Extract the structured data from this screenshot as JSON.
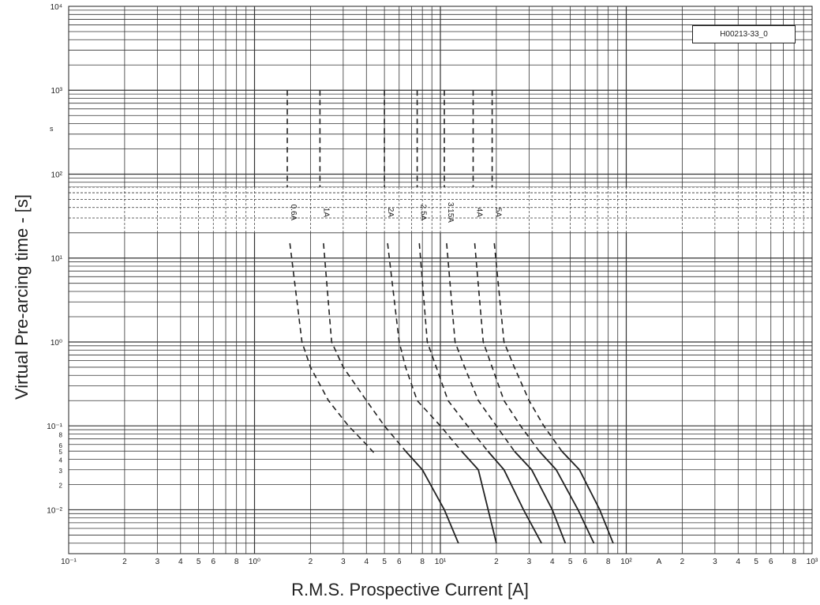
{
  "chart_data": {
    "type": "line",
    "title": "",
    "xlabel": "R.M.S. Prospective Current [A]",
    "ylabel": "Virtual Pre-arcing time - [s]",
    "reference": "H00213-33_0",
    "y_unit": "s",
    "x_scale": "log",
    "y_scale": "log",
    "xlim": [
      0.1,
      1000
    ],
    "ylim": [
      0.003,
      10000
    ],
    "grid": true,
    "x_tick_labels": [
      "10⁻¹",
      "2",
      "3",
      "4",
      "5",
      "6",
      "8",
      "10⁰",
      "2",
      "3",
      "4",
      "5",
      "6",
      "8",
      "10¹",
      "2",
      "3",
      "4",
      "5",
      "6",
      "8",
      "10²",
      "A",
      "2",
      "3",
      "4",
      "5",
      "6",
      "8",
      "10³"
    ],
    "y_tick_labels": [
      "10⁴",
      "10³",
      "10²",
      "10¹",
      "10⁰",
      "10⁻¹",
      "8",
      "6",
      "5",
      "4",
      "3",
      "2",
      "10⁻²"
    ],
    "series": [
      {
        "name": "0.6A",
        "x": [
          1.5,
          1.5,
          1.55,
          1.8,
          2.0,
          2.5,
          3.2,
          4.0,
          4.5
        ],
        "y": [
          1000,
          70,
          15,
          1.0,
          0.5,
          0.2,
          0.1,
          0.06,
          0.045
        ]
      },
      {
        "name": "1A",
        "x": [
          2.25,
          2.25,
          2.35,
          2.6,
          3.0,
          4.0,
          5.0,
          6.5,
          8.0,
          10.5,
          12.5
        ],
        "y": [
          1000,
          70,
          15,
          1.0,
          0.5,
          0.2,
          0.1,
          0.05,
          0.03,
          0.01,
          0.004
        ]
      },
      {
        "name": "2A",
        "x": [
          5.0,
          5.0,
          5.2,
          6.0,
          6.5,
          7.5,
          10.0,
          13.0,
          16.0,
          20.0
        ],
        "y": [
          1000,
          70,
          15,
          1.0,
          0.5,
          0.2,
          0.1,
          0.05,
          0.03,
          0.004
        ]
      },
      {
        "name": "2.5A",
        "x": [
          7.5,
          7.5,
          7.7,
          8.5,
          9.5,
          11.0,
          14.0,
          18.0,
          22.0,
          28.0,
          35.0
        ],
        "y": [
          1000,
          70,
          15,
          1.0,
          0.5,
          0.2,
          0.1,
          0.05,
          0.03,
          0.01,
          0.004
        ]
      },
      {
        "name": "3.15A",
        "x": [
          10.5,
          10.5,
          10.8,
          12.0,
          13.5,
          16.0,
          20.0,
          25.0,
          31.0,
          40.0,
          47.0
        ],
        "y": [
          1000,
          70,
          15,
          1.0,
          0.5,
          0.2,
          0.1,
          0.05,
          0.03,
          0.01,
          0.004
        ]
      },
      {
        "name": "4A",
        "x": [
          15.0,
          15.0,
          15.3,
          17.0,
          19.0,
          22.0,
          27.0,
          34.0,
          42.0,
          55.0,
          67.0
        ],
        "y": [
          1000,
          70,
          15,
          1.0,
          0.5,
          0.2,
          0.1,
          0.05,
          0.03,
          0.01,
          0.004
        ]
      },
      {
        "name": "5A",
        "x": [
          19.0,
          19.0,
          19.5,
          22.0,
          25.0,
          30.0,
          36.0,
          45.0,
          56.0,
          72.0,
          85.0
        ],
        "y": [
          1000,
          70,
          15,
          1.0,
          0.5,
          0.2,
          0.1,
          0.05,
          0.03,
          0.01,
          0.004
        ]
      }
    ]
  }
}
